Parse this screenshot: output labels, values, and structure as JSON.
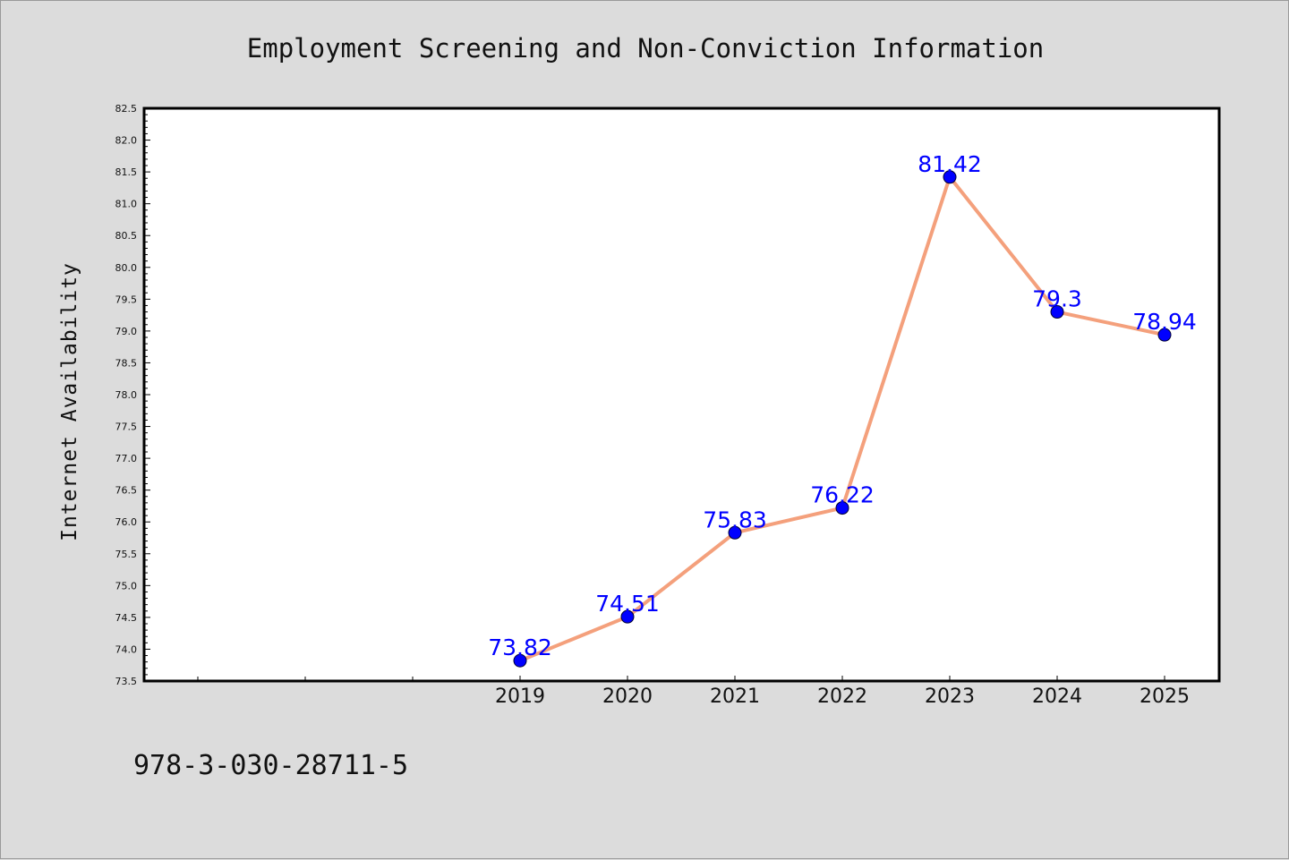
{
  "chart_data": {
    "type": "line",
    "title": "Employment Screening and Non-Conviction Information",
    "ylabel": "Internet Availability",
    "xlabel": "",
    "x": [
      "2019",
      "2020",
      "2021",
      "2022",
      "2023",
      "2024",
      "2025"
    ],
    "series": [
      {
        "values": [
          73.82,
          74.51,
          75.83,
          76.22,
          81.42,
          79.3,
          78.94
        ],
        "labels": [
          "73.82",
          "74.51",
          "75.83",
          "76.22",
          "81.42",
          "79.3",
          "78.94"
        ]
      }
    ],
    "ylim": [
      73.5,
      82.5
    ],
    "yticks": [
      "73.5",
      "74.0",
      "74.5",
      "75.0",
      "75.5",
      "76.0",
      "76.5",
      "77.0",
      "77.5",
      "78.0",
      "78.5",
      "79.0",
      "79.5",
      "80.0",
      "80.5",
      "81.0",
      "81.5",
      "82.0",
      "82.5"
    ],
    "grid": false,
    "line_color": "#f4a07c",
    "marker_color": "#0000ff",
    "label_color": "#0000ff"
  },
  "footer": {
    "text": "978-3-030-28711-5"
  }
}
